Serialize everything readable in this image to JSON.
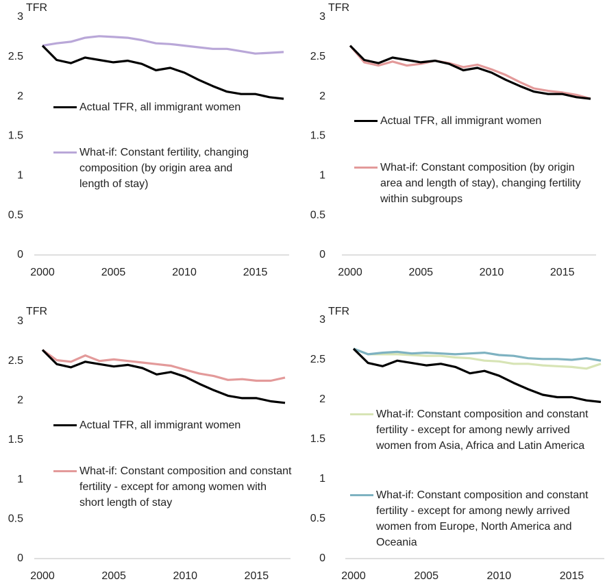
{
  "chart_data": [
    {
      "type": "line",
      "y_label": "TFR",
      "x": [
        2000,
        2001,
        2002,
        2003,
        2004,
        2005,
        2006,
        2007,
        2008,
        2009,
        2010,
        2011,
        2012,
        2013,
        2014,
        2015,
        2016,
        2017
      ],
      "xlim": [
        2000,
        2017
      ],
      "xticks": [
        2000,
        2005,
        2010,
        2015
      ],
      "ylim": [
        0,
        3
      ],
      "yticks": [
        0,
        0.5,
        1,
        1.5,
        2,
        2.5,
        3
      ],
      "series": [
        {
          "name": "Actual TFR, all immigrant women",
          "color": "#000000",
          "values": [
            2.64,
            2.46,
            2.42,
            2.49,
            2.46,
            2.43,
            2.45,
            2.41,
            2.33,
            2.36,
            2.3,
            2.21,
            2.13,
            2.06,
            2.03,
            2.03,
            1.99,
            1.97
          ]
        },
        {
          "name": "What-if: Constant fertility, changing composition (by origin area and length of stay)",
          "color": "#b9a7d8",
          "values": [
            2.64,
            2.67,
            2.69,
            2.74,
            2.76,
            2.75,
            2.74,
            2.71,
            2.67,
            2.66,
            2.64,
            2.62,
            2.6,
            2.6,
            2.57,
            2.54,
            2.55,
            2.56
          ]
        }
      ]
    },
    {
      "type": "line",
      "y_label": "TFR",
      "x": [
        2000,
        2001,
        2002,
        2003,
        2004,
        2005,
        2006,
        2007,
        2008,
        2009,
        2010,
        2011,
        2012,
        2013,
        2014,
        2015,
        2016,
        2017
      ],
      "xlim": [
        2000,
        2017
      ],
      "xticks": [
        2000,
        2005,
        2010,
        2015
      ],
      "ylim": [
        0,
        3
      ],
      "yticks": [
        0,
        0.5,
        1,
        1.5,
        2,
        2.5,
        3
      ],
      "series": [
        {
          "name": "Actual TFR, all immigrant women",
          "color": "#000000",
          "values": [
            2.64,
            2.46,
            2.42,
            2.49,
            2.46,
            2.43,
            2.45,
            2.41,
            2.33,
            2.36,
            2.3,
            2.21,
            2.13,
            2.06,
            2.03,
            2.03,
            1.99,
            1.97
          ]
        },
        {
          "name": "What-if: Constant composition (by origin area and length of stay), changing fertility within subgroups",
          "color": "#e39a9a",
          "values": [
            2.64,
            2.43,
            2.39,
            2.44,
            2.39,
            2.41,
            2.45,
            2.42,
            2.37,
            2.4,
            2.34,
            2.27,
            2.18,
            2.1,
            2.07,
            2.05,
            2.02,
            1.97
          ]
        }
      ]
    },
    {
      "type": "line",
      "y_label": "TFR",
      "x": [
        2000,
        2001,
        2002,
        2003,
        2004,
        2005,
        2006,
        2007,
        2008,
        2009,
        2010,
        2011,
        2012,
        2013,
        2014,
        2015,
        2016,
        2017
      ],
      "xlim": [
        2000,
        2017
      ],
      "xticks": [
        2000,
        2005,
        2010,
        2015
      ],
      "ylim": [
        0,
        3
      ],
      "yticks": [
        0,
        0.5,
        1,
        1.5,
        2,
        2.5,
        3
      ],
      "series": [
        {
          "name": "Actual TFR, all immigrant women",
          "color": "#000000",
          "values": [
            2.64,
            2.46,
            2.42,
            2.49,
            2.46,
            2.43,
            2.45,
            2.41,
            2.33,
            2.36,
            2.3,
            2.21,
            2.13,
            2.06,
            2.03,
            2.03,
            1.99,
            1.97
          ]
        },
        {
          "name": "What-if: Constant composition and constant fertility - except for among women with short length of stay",
          "color": "#e39a9a",
          "values": [
            2.64,
            2.51,
            2.49,
            2.57,
            2.5,
            2.52,
            2.5,
            2.48,
            2.46,
            2.44,
            2.39,
            2.34,
            2.31,
            2.26,
            2.27,
            2.25,
            2.25,
            2.29
          ]
        }
      ]
    },
    {
      "type": "line",
      "y_label": "TFR",
      "x": [
        2000,
        2001,
        2002,
        2003,
        2004,
        2005,
        2006,
        2007,
        2008,
        2009,
        2010,
        2011,
        2012,
        2013,
        2014,
        2015,
        2016,
        2017
      ],
      "xlim": [
        2000,
        2017
      ],
      "xticks": [
        2000,
        2005,
        2010,
        2015
      ],
      "ylim": [
        0,
        3
      ],
      "yticks": [
        0,
        0.5,
        1,
        1.5,
        2,
        2.5,
        3
      ],
      "series": [
        {
          "name": "Actual TFR, all immigrant women",
          "color": "#000000",
          "values": [
            2.64,
            2.46,
            2.42,
            2.49,
            2.46,
            2.43,
            2.45,
            2.41,
            2.33,
            2.36,
            2.3,
            2.21,
            2.13,
            2.06,
            2.03,
            2.03,
            1.99,
            1.97
          ]
        },
        {
          "name": "What-if: Constant composition and constant fertility - except for among newly arrived women from Asia, Africa and Latin America",
          "color": "#d7e4b5",
          "values": [
            2.64,
            2.57,
            2.57,
            2.57,
            2.56,
            2.55,
            2.55,
            2.53,
            2.52,
            2.49,
            2.48,
            2.45,
            2.45,
            2.43,
            2.42,
            2.41,
            2.39,
            2.45
          ]
        },
        {
          "name": "What-if: Constant composition and constant fertility - except for among newly arrived women from Europe, North America and Oceania",
          "color": "#7eb2c1",
          "values": [
            2.64,
            2.57,
            2.59,
            2.6,
            2.58,
            2.59,
            2.58,
            2.57,
            2.58,
            2.59,
            2.56,
            2.55,
            2.52,
            2.51,
            2.51,
            2.5,
            2.52,
            2.49
          ]
        }
      ]
    }
  ]
}
